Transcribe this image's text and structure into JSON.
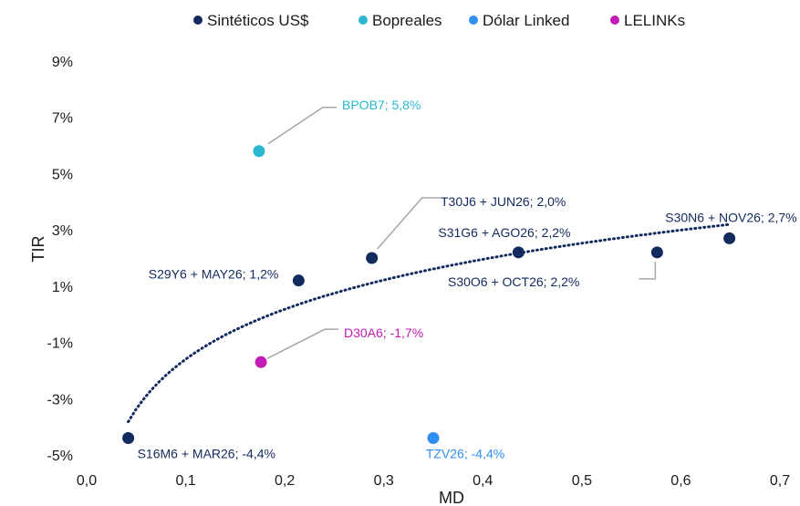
{
  "chart_data": {
    "type": "scatter",
    "xlabel": "MD",
    "ylabel": "TIR",
    "xlim": [
      0,
      0.7
    ],
    "ylim": [
      -5,
      9
    ],
    "x_ticks": [
      "0,0",
      "0,1",
      "0,2",
      "0,3",
      "0,4",
      "0,5",
      "0,6",
      "0,7"
    ],
    "y_ticks": [
      "-5%",
      "-3%",
      "-1%",
      "1%",
      "3%",
      "5%",
      "7%",
      "9%"
    ],
    "grid": false,
    "legend_position": "top",
    "series": [
      {
        "name": "Sintéticos US$",
        "color": "#132a5e",
        "points": [
          {
            "x": 0.042,
            "y": -4.4,
            "label": "S16M6 + MAR26; -4,4%"
          },
          {
            "x": 0.214,
            "y": 1.2,
            "label": "S29Y6 + MAY26; 1,2%"
          },
          {
            "x": 0.288,
            "y": 2.0,
            "label": "T30J6 + JUN26; 2,0%"
          },
          {
            "x": 0.436,
            "y": 2.2,
            "label": "S31G6 + AGO26; 2,2%"
          },
          {
            "x": 0.576,
            "y": 2.2,
            "label": "S30O6 + OCT26; 2,2%"
          },
          {
            "x": 0.649,
            "y": 2.7,
            "label": "S30N6 + NOV26; 2,7%"
          }
        ]
      },
      {
        "name": "Bopreales",
        "color": "#2ab7cf",
        "points": [
          {
            "x": 0.174,
            "y": 5.8,
            "label": "BPOB7; 5,8%"
          }
        ]
      },
      {
        "name": "Dólar Linked",
        "color": "#2f8ff2",
        "points": [
          {
            "x": 0.35,
            "y": -4.4,
            "label": "TZV26; -4,4%"
          }
        ]
      },
      {
        "name": "LELINKs",
        "color": "#c31bb6",
        "points": [
          {
            "x": 0.176,
            "y": -1.7,
            "label": "D30A6; -1,7%"
          }
        ]
      }
    ],
    "trendline": {
      "type": "logarithmic",
      "series": "Sintéticos US$",
      "color": "#132a5e",
      "x_range": [
        0.042,
        0.649
      ]
    }
  }
}
